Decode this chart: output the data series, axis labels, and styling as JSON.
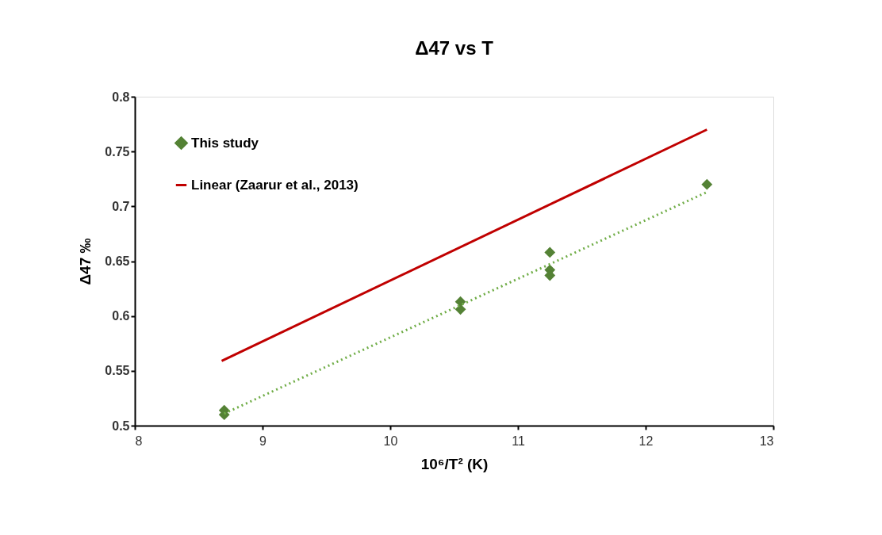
{
  "chart_data": {
    "type": "scatter",
    "title": "Δ47 vs T",
    "xlabel": "10⁶/T² (K)",
    "ylabel": "Δ47 ‰",
    "xlim": [
      8,
      13
    ],
    "xticks": [
      8,
      9,
      10,
      11,
      12,
      13
    ],
    "ylim": [
      0.5,
      0.8
    ],
    "yticks": [
      0.5,
      0.55,
      0.6,
      0.65,
      0.7,
      0.75,
      0.8
    ],
    "grid": false,
    "legend": "top left",
    "series": [
      {
        "name": "This study",
        "marker": "diamond",
        "color": "#548235",
        "x": [
          8.7,
          8.7,
          10.55,
          10.55,
          11.25,
          11.25,
          11.25,
          12.48
        ],
        "values": [
          0.514,
          0.51,
          0.613,
          0.606,
          0.658,
          0.642,
          0.637,
          0.72
        ]
      },
      {
        "name": "Linear (Zaarur et al., 2013)",
        "type": "line",
        "color": "#c00000",
        "line_style": "solid",
        "x": [
          8.68,
          12.48
        ],
        "values": [
          0.559,
          0.77
        ]
      },
      {
        "type": "line",
        "color": "#70ad47",
        "line_style": "dotted",
        "x": [
          8.7,
          12.48
        ],
        "values": [
          0.511,
          0.713
        ]
      }
    ]
  }
}
